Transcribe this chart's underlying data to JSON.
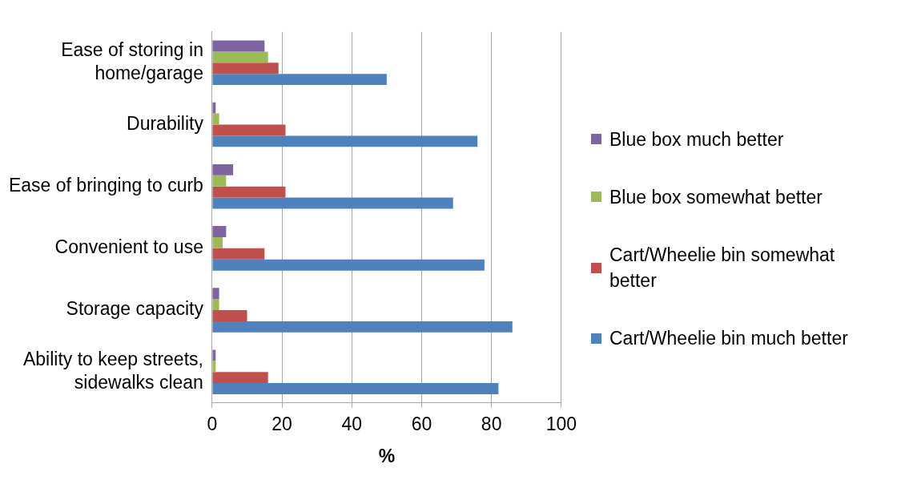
{
  "chart_data": {
    "type": "bar",
    "orientation": "horizontal",
    "xlabel": "%",
    "categories": [
      "Ease of storing in home/garage",
      "Durability",
      "Ease of bringing to curb",
      "Convenient to use",
      "Storage capacity",
      "Ability to keep streets, sidewalks clean"
    ],
    "series": [
      {
        "name": "Blue box much better",
        "color": "#8064a2",
        "values": [
          15,
          1,
          6,
          4,
          2,
          1
        ]
      },
      {
        "name": "Blue box somewhat better",
        "color": "#9bbb59",
        "values": [
          16,
          2,
          4,
          3,
          2,
          1
        ]
      },
      {
        "name": "Cart/Wheelie bin somewhat better",
        "color": "#c0504d",
        "values": [
          19,
          21,
          21,
          15,
          10,
          16
        ]
      },
      {
        "name": "Cart/Wheelie bin much better",
        "color": "#4f81bd",
        "values": [
          50,
          76,
          69,
          78,
          86,
          82
        ]
      }
    ],
    "xlim": [
      0,
      100
    ],
    "xticks": [
      0,
      20,
      40,
      60,
      80,
      100
    ],
    "grid": "x",
    "legend": "right"
  }
}
